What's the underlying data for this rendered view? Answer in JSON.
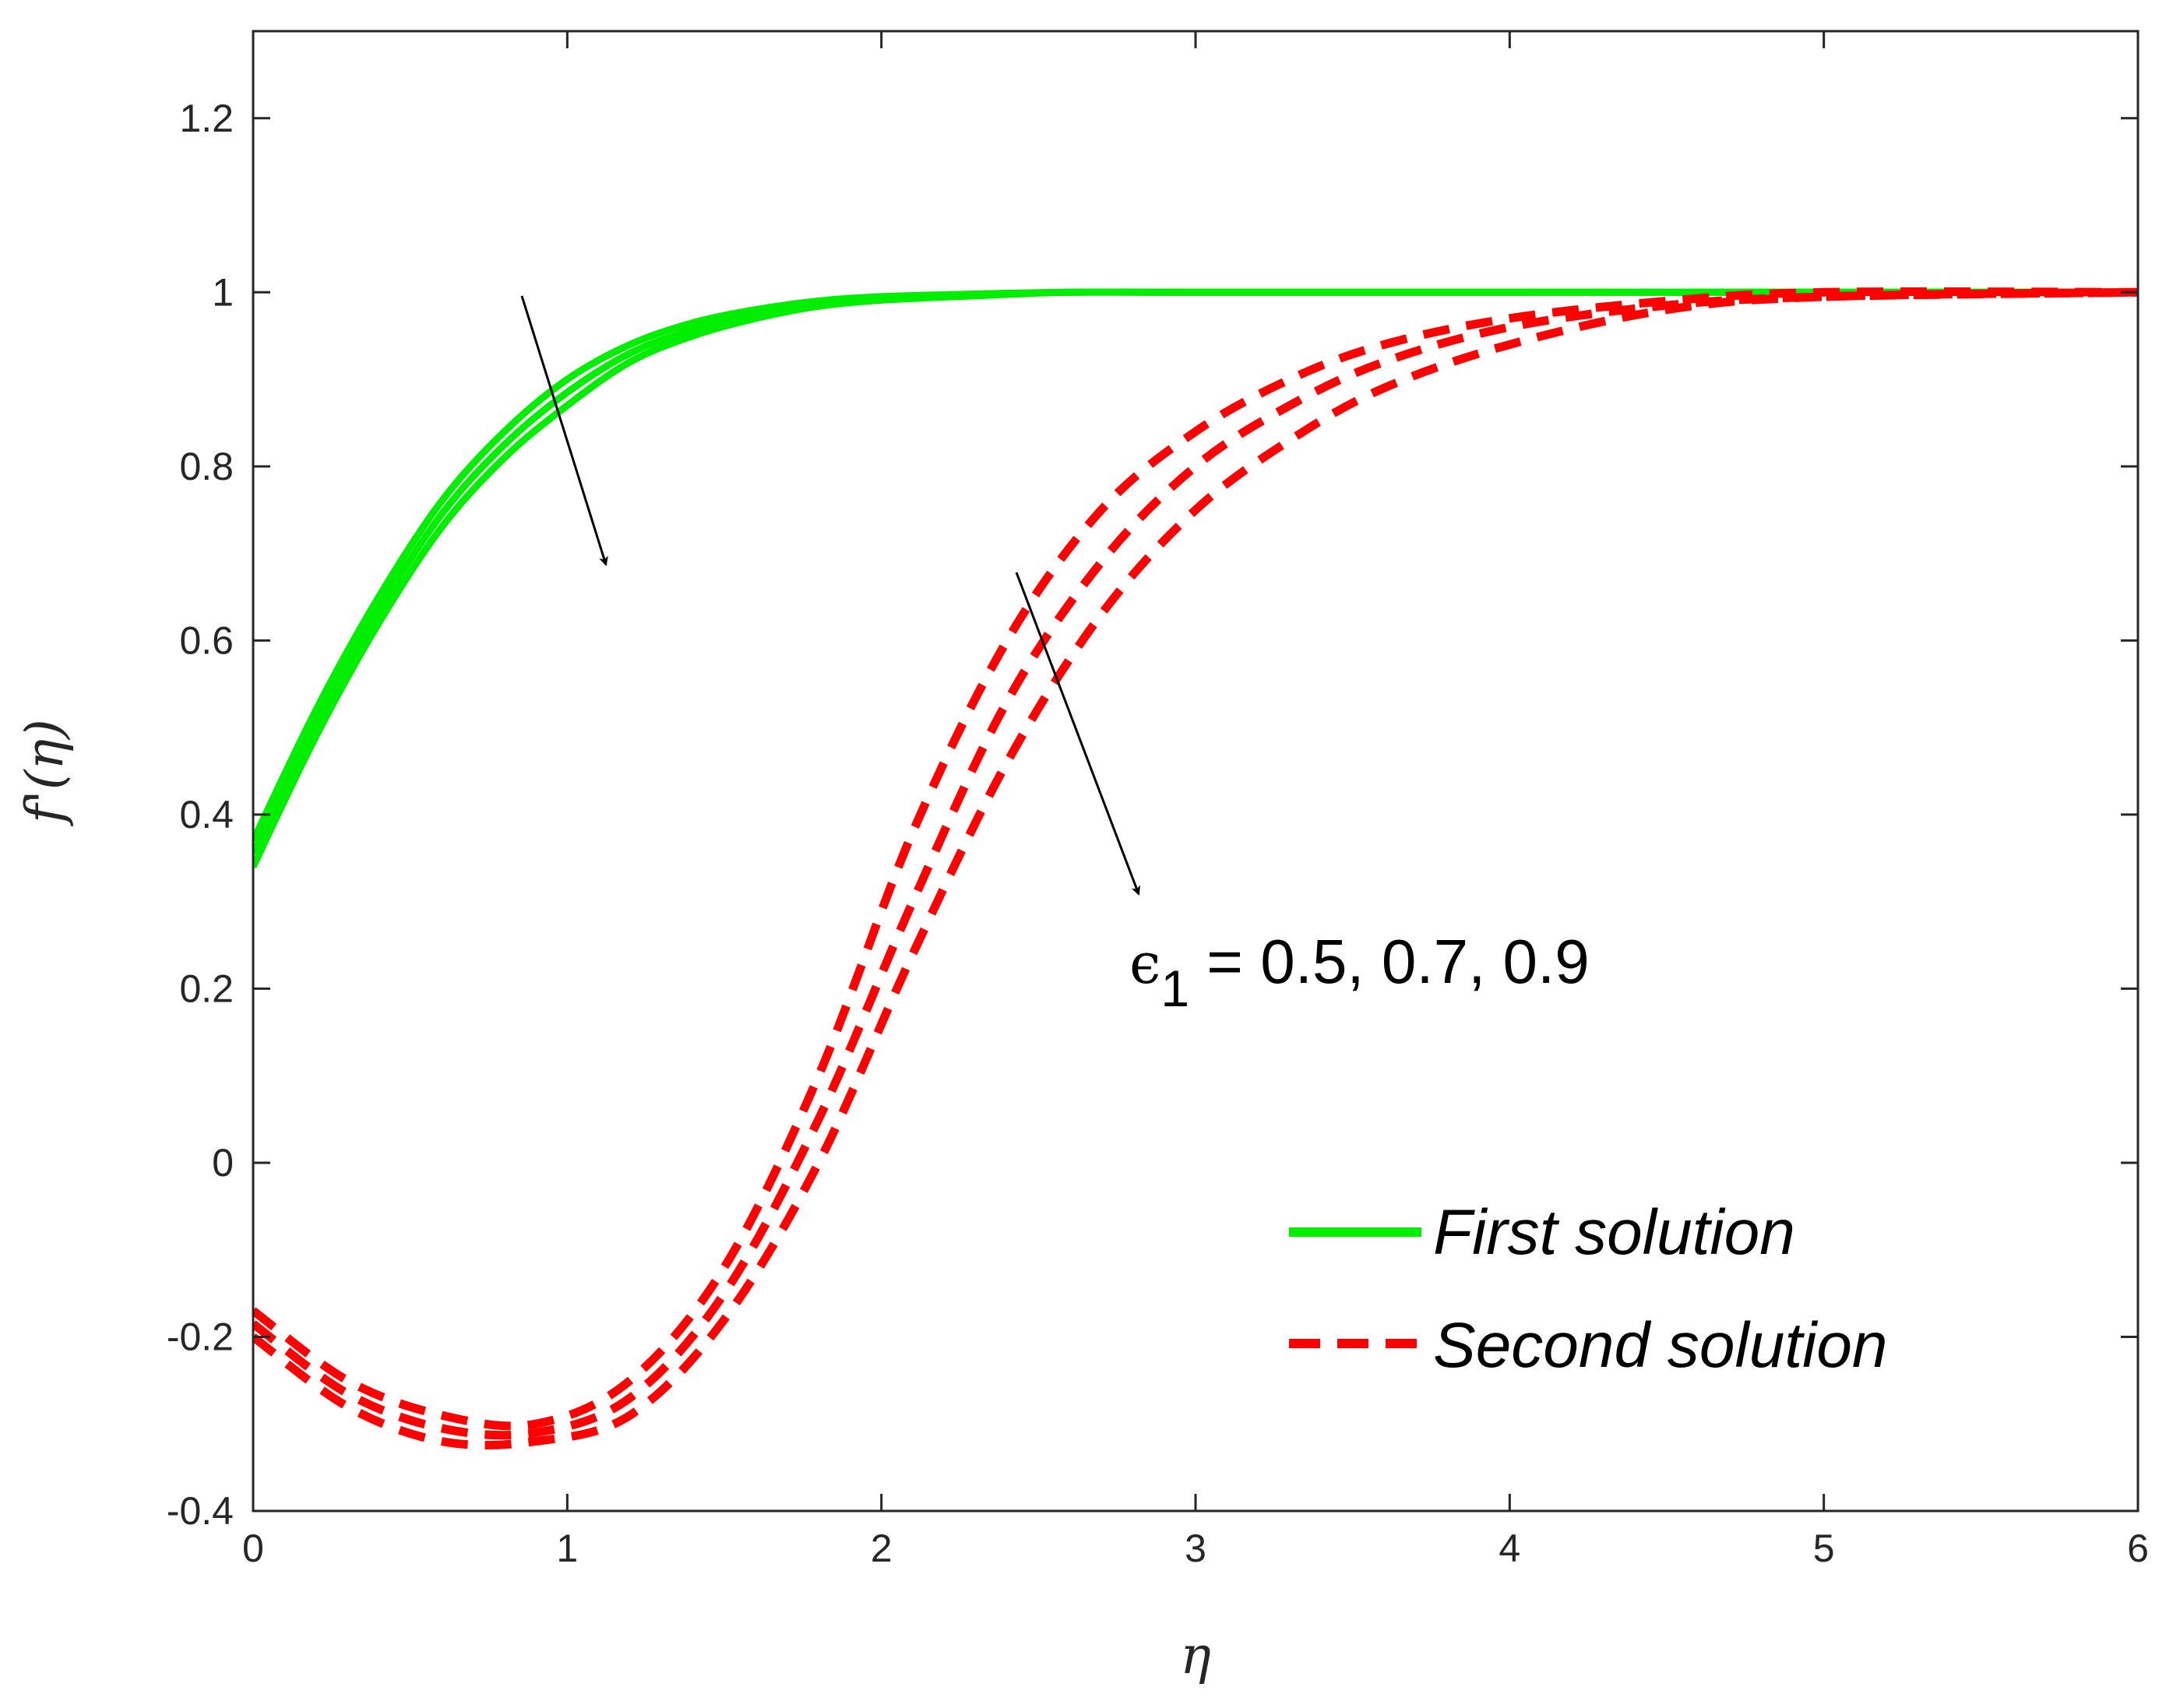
{
  "chart_data": {
    "type": "line",
    "title": "",
    "xlabel": "η",
    "ylabel": "f'(η)",
    "xlim": [
      0,
      6
    ],
    "ylim": [
      -0.4,
      1.3
    ],
    "x_ticks": [
      "0",
      "1",
      "2",
      "3",
      "4",
      "5",
      "6"
    ],
    "y_ticks": [
      "-0.4",
      "-0.2",
      "0",
      "0.2",
      "0.4",
      "0.6",
      "0.8",
      "1",
      "1.2"
    ],
    "grid": false,
    "legend_position": "bottom-right",
    "legend": [
      {
        "label": "First solution",
        "color": "#00ee00",
        "style": "solid"
      },
      {
        "label": "Second solution",
        "color": "#ff0000",
        "style": "dashed"
      }
    ],
    "annotation": {
      "symbol": "ϵ",
      "subscript": "1",
      "text": " = 0.5, 0.7, 0.9"
    },
    "series": [
      {
        "group": "first",
        "epsilon": 0.5,
        "color": "#00ee00",
        "style": "solid",
        "x": [
          0,
          0.2,
          0.4,
          0.6,
          0.8,
          1.0,
          1.2,
          1.4,
          1.6,
          1.8,
          2.0,
          2.3,
          2.6,
          3.0,
          4.0,
          5.0,
          6.0
        ],
        "y": [
          0.37,
          0.52,
          0.65,
          0.76,
          0.84,
          0.9,
          0.94,
          0.965,
          0.98,
          0.99,
          0.995,
          0.998,
          1.0,
          1.0,
          1.0,
          1.0,
          1.0
        ]
      },
      {
        "group": "first",
        "epsilon": 0.7,
        "color": "#00ee00",
        "style": "solid",
        "x": [
          0,
          0.2,
          0.4,
          0.6,
          0.8,
          1.0,
          1.2,
          1.4,
          1.6,
          1.8,
          2.0,
          2.3,
          2.6,
          3.0,
          4.0,
          5.0,
          6.0
        ],
        "y": [
          0.355,
          0.505,
          0.635,
          0.745,
          0.825,
          0.885,
          0.93,
          0.957,
          0.975,
          0.987,
          0.993,
          0.997,
          1.0,
          1.0,
          1.0,
          1.0,
          1.0
        ]
      },
      {
        "group": "first",
        "epsilon": 0.9,
        "color": "#00ee00",
        "style": "solid",
        "x": [
          0,
          0.2,
          0.4,
          0.6,
          0.8,
          1.0,
          1.2,
          1.4,
          1.6,
          1.8,
          2.0,
          2.3,
          2.6,
          3.0,
          4.0,
          5.0,
          6.0
        ],
        "y": [
          0.34,
          0.49,
          0.62,
          0.73,
          0.81,
          0.87,
          0.92,
          0.95,
          0.97,
          0.984,
          0.991,
          0.996,
          1.0,
          1.0,
          1.0,
          1.0,
          1.0
        ]
      },
      {
        "group": "second",
        "epsilon": 0.5,
        "color": "#ff0000",
        "style": "dashed",
        "x": [
          0,
          0.3,
          0.6,
          0.9,
          1.2,
          1.5,
          1.8,
          2.1,
          2.4,
          2.7,
          3.0,
          3.3,
          3.6,
          4.0,
          4.5,
          5.0,
          6.0
        ],
        "y": [
          -0.17,
          -0.25,
          -0.29,
          -0.3,
          -0.25,
          -0.12,
          0.1,
          0.38,
          0.6,
          0.75,
          0.84,
          0.9,
          0.94,
          0.97,
          0.99,
          1.0,
          1.0
        ]
      },
      {
        "group": "second",
        "epsilon": 0.7,
        "color": "#ff0000",
        "style": "dashed",
        "x": [
          0,
          0.3,
          0.6,
          0.9,
          1.2,
          1.5,
          1.8,
          2.1,
          2.4,
          2.7,
          3.0,
          3.3,
          3.6,
          4.0,
          4.5,
          5.0,
          6.0
        ],
        "y": [
          -0.185,
          -0.265,
          -0.305,
          -0.31,
          -0.27,
          -0.15,
          0.05,
          0.3,
          0.53,
          0.69,
          0.8,
          0.87,
          0.92,
          0.96,
          0.985,
          0.995,
          1.0
        ]
      },
      {
        "group": "second",
        "epsilon": 0.9,
        "color": "#ff0000",
        "style": "dashed",
        "x": [
          0,
          0.3,
          0.6,
          0.9,
          1.2,
          1.5,
          1.8,
          2.1,
          2.4,
          2.7,
          3.0,
          3.3,
          3.6,
          4.0,
          4.5,
          5.0,
          6.0
        ],
        "y": [
          -0.2,
          -0.28,
          -0.32,
          -0.32,
          -0.29,
          -0.18,
          0.0,
          0.24,
          0.46,
          0.63,
          0.75,
          0.83,
          0.89,
          0.94,
          0.98,
          0.995,
          1.0
        ]
      }
    ]
  }
}
